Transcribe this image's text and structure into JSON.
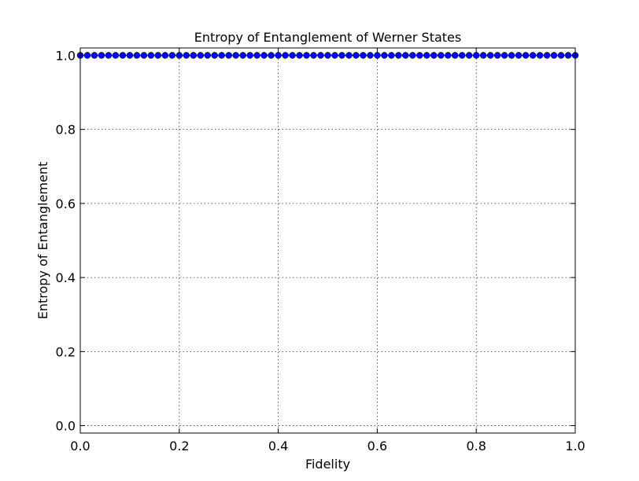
{
  "chart_data": {
    "type": "line",
    "title": "Entropy of Entanglement of Werner States",
    "xlabel": "Fidelity",
    "ylabel": "Entropy of Entanglement",
    "xlim": [
      0.0,
      1.0
    ],
    "ylim": [
      -0.02,
      1.02
    ],
    "xticks": [
      "0.0",
      "0.2",
      "0.4",
      "0.6",
      "0.8",
      "1.0"
    ],
    "yticks": [
      "0.0",
      "0.2",
      "0.4",
      "0.6",
      "0.8",
      "1.0"
    ],
    "grid": true,
    "series": [
      {
        "color": "#0000ff",
        "marker": "circle",
        "x": [
          0.0,
          0.0143,
          0.0286,
          0.0429,
          0.0571,
          0.0714,
          0.0857,
          0.1,
          0.1143,
          0.1286,
          0.1429,
          0.1571,
          0.1714,
          0.1857,
          0.2,
          0.2143,
          0.2286,
          0.2429,
          0.2571,
          0.2714,
          0.2857,
          0.3,
          0.3143,
          0.3286,
          0.3429,
          0.3571,
          0.3714,
          0.3857,
          0.4,
          0.4143,
          0.4286,
          0.4429,
          0.4571,
          0.4714,
          0.4857,
          0.5,
          0.5143,
          0.5286,
          0.5429,
          0.5571,
          0.5714,
          0.5857,
          0.6,
          0.6143,
          0.6286,
          0.6429,
          0.6571,
          0.6714,
          0.6857,
          0.7,
          0.7143,
          0.7286,
          0.7429,
          0.7571,
          0.7714,
          0.7857,
          0.8,
          0.8143,
          0.8286,
          0.8429,
          0.8571,
          0.8714,
          0.8857,
          0.9,
          0.9143,
          0.9286,
          0.9429,
          0.9571,
          0.9714,
          0.9857,
          1.0
        ],
        "y": [
          1.0,
          1.0,
          1.0,
          1.0,
          1.0,
          1.0,
          1.0,
          1.0,
          1.0,
          1.0,
          1.0,
          1.0,
          1.0,
          1.0,
          1.0,
          1.0,
          1.0,
          1.0,
          1.0,
          1.0,
          1.0,
          1.0,
          1.0,
          1.0,
          1.0,
          1.0,
          1.0,
          1.0,
          1.0,
          1.0,
          1.0,
          1.0,
          1.0,
          1.0,
          1.0,
          1.0,
          1.0,
          1.0,
          1.0,
          1.0,
          1.0,
          1.0,
          1.0,
          1.0,
          1.0,
          1.0,
          1.0,
          1.0,
          1.0,
          1.0,
          1.0,
          1.0,
          1.0,
          1.0,
          1.0,
          1.0,
          1.0,
          1.0,
          1.0,
          1.0,
          1.0,
          1.0,
          1.0,
          1.0,
          1.0,
          1.0,
          1.0,
          1.0,
          1.0,
          1.0,
          1.0
        ]
      }
    ]
  }
}
